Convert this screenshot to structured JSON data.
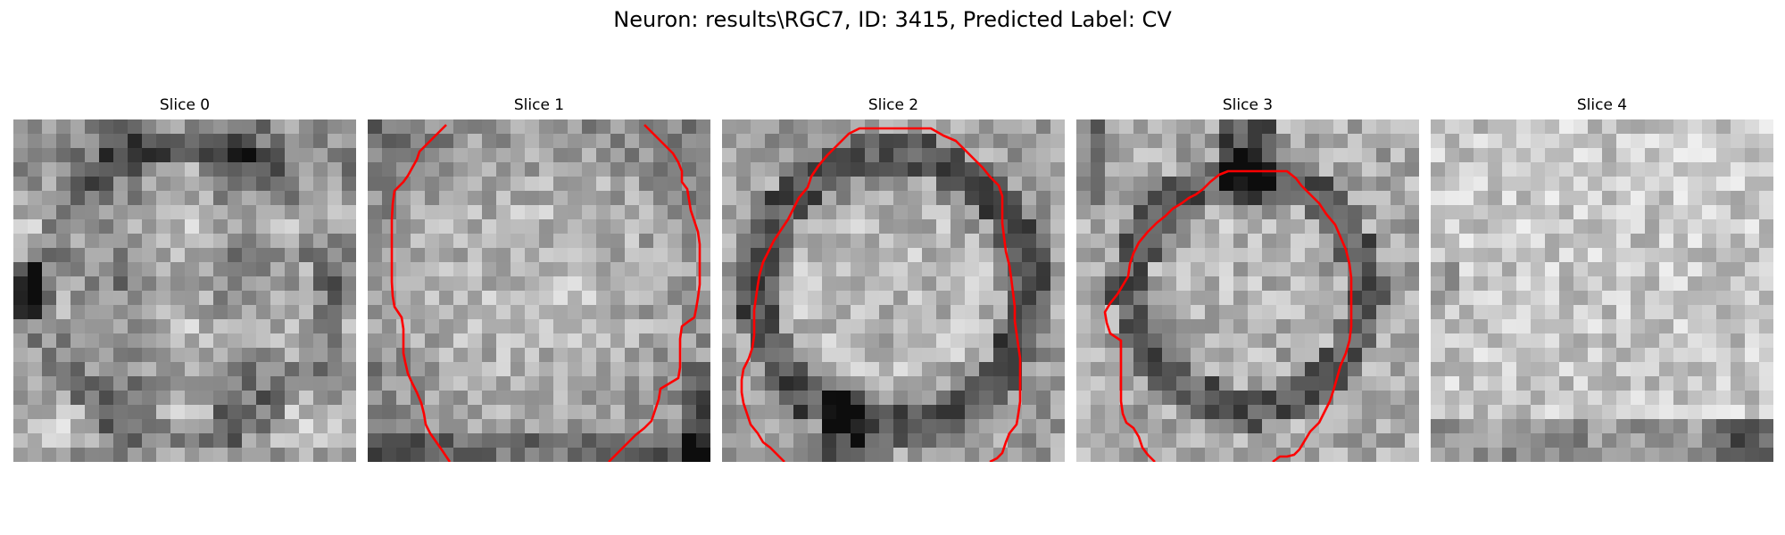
{
  "figure": {
    "title": "Neuron: results\\RGC7, ID: 3415, Predicted Label: CV"
  },
  "panels": [
    {
      "label": "Slice 0",
      "has_contour": false,
      "contour": []
    },
    {
      "label": "Slice 1",
      "has_contour": true,
      "contour": [
        [
          [
            88,
            6
          ],
          [
            82,
            12
          ],
          [
            76,
            18
          ],
          [
            70,
            24
          ],
          [
            64,
            30
          ],
          [
            58,
            36
          ],
          [
            55,
            45
          ],
          [
            50,
            54
          ],
          [
            45,
            63
          ],
          [
            40,
            70
          ],
          [
            30,
            80
          ],
          [
            28,
            95
          ],
          [
            27,
            112
          ],
          [
            27,
            130
          ],
          [
            27,
            148
          ],
          [
            27,
            165
          ],
          [
            27,
            182
          ],
          [
            28,
            198
          ],
          [
            30,
            210
          ],
          [
            38,
            222
          ],
          [
            40,
            235
          ],
          [
            40,
            248
          ],
          [
            40,
            262
          ],
          [
            42,
            272
          ],
          [
            45,
            285
          ],
          [
            50,
            296
          ],
          [
            55,
            306
          ],
          [
            60,
            318
          ],
          [
            63,
            330
          ],
          [
            65,
            342
          ],
          [
            70,
            352
          ],
          [
            77,
            362
          ],
          [
            84,
            372
          ],
          [
            88,
            378
          ],
          [
            92,
            384
          ]
        ],
        [
          [
            310,
            6
          ],
          [
            318,
            14
          ],
          [
            326,
            22
          ],
          [
            334,
            30
          ],
          [
            342,
            38
          ],
          [
            348,
            48
          ],
          [
            352,
            58
          ],
          [
            352,
            70
          ],
          [
            358,
            78
          ],
          [
            360,
            90
          ],
          [
            362,
            102
          ],
          [
            366,
            114
          ],
          [
            370,
            126
          ],
          [
            372,
            140
          ],
          [
            372,
            155
          ],
          [
            372,
            170
          ],
          [
            372,
            185
          ],
          [
            370,
            200
          ],
          [
            368,
            212
          ],
          [
            366,
            222
          ],
          [
            360,
            226
          ],
          [
            352,
            232
          ],
          [
            350,
            246
          ],
          [
            350,
            262
          ],
          [
            350,
            278
          ],
          [
            348,
            290
          ],
          [
            338,
            296
          ],
          [
            328,
            302
          ],
          [
            326,
            314
          ],
          [
            322,
            326
          ],
          [
            318,
            338
          ],
          [
            310,
            346
          ],
          [
            300,
            354
          ],
          [
            290,
            364
          ],
          [
            282,
            372
          ],
          [
            276,
            378
          ],
          [
            270,
            384
          ]
        ]
      ]
    },
    {
      "label": "Slice 2",
      "has_contour": true,
      "contour": [
        [
          [
            70,
            384
          ],
          [
            62,
            376
          ],
          [
            54,
            368
          ],
          [
            46,
            362
          ],
          [
            40,
            352
          ],
          [
            32,
            342
          ],
          [
            28,
            330
          ],
          [
            24,
            318
          ],
          [
            22,
            306
          ],
          [
            22,
            292
          ],
          [
            24,
            280
          ],
          [
            30,
            268
          ],
          [
            34,
            256
          ],
          [
            36,
            242
          ],
          [
            36,
            228
          ],
          [
            36,
            214
          ],
          [
            38,
            200
          ],
          [
            40,
            186
          ],
          [
            42,
            174
          ],
          [
            46,
            160
          ],
          [
            52,
            148
          ],
          [
            58,
            136
          ],
          [
            66,
            124
          ],
          [
            74,
            112
          ],
          [
            80,
            100
          ],
          [
            86,
            88
          ],
          [
            96,
            76
          ],
          [
            100,
            64
          ],
          [
            108,
            52
          ],
          [
            118,
            40
          ],
          [
            130,
            28
          ],
          [
            142,
            16
          ],
          [
            154,
            10
          ],
          [
            170,
            10
          ],
          [
            186,
            10
          ],
          [
            202,
            10
          ],
          [
            218,
            10
          ],
          [
            234,
            10
          ],
          [
            248,
            18
          ],
          [
            262,
            24
          ],
          [
            272,
            34
          ],
          [
            282,
            44
          ],
          [
            292,
            54
          ],
          [
            300,
            64
          ],
          [
            310,
            74
          ],
          [
            314,
            86
          ],
          [
            314,
            100
          ],
          [
            314,
            116
          ],
          [
            316,
            132
          ],
          [
            318,
            148
          ],
          [
            322,
            164
          ],
          [
            324,
            178
          ],
          [
            326,
            194
          ],
          [
            328,
            210
          ],
          [
            328,
            226
          ],
          [
            330,
            240
          ],
          [
            332,
            254
          ],
          [
            334,
            268
          ],
          [
            334,
            284
          ],
          [
            334,
            300
          ],
          [
            334,
            316
          ],
          [
            332,
            330
          ],
          [
            330,
            342
          ],
          [
            322,
            352
          ],
          [
            318,
            362
          ],
          [
            314,
            374
          ],
          [
            308,
            380
          ],
          [
            300,
            384
          ]
        ]
      ]
    },
    {
      "label": "Slice 3",
      "has_contour": true,
      "contour": [
        [
          [
            88,
            384
          ],
          [
            80,
            376
          ],
          [
            74,
            368
          ],
          [
            70,
            356
          ],
          [
            64,
            346
          ],
          [
            56,
            340
          ],
          [
            52,
            330
          ],
          [
            50,
            316
          ],
          [
            50,
            300
          ],
          [
            50,
            286
          ],
          [
            50,
            274
          ],
          [
            50,
            260
          ],
          [
            50,
            248
          ],
          [
            38,
            240
          ],
          [
            34,
            228
          ],
          [
            32,
            216
          ],
          [
            38,
            206
          ],
          [
            46,
            196
          ],
          [
            52,
            186
          ],
          [
            58,
            176
          ],
          [
            60,
            162
          ],
          [
            64,
            150
          ],
          [
            70,
            138
          ],
          [
            80,
            126
          ],
          [
            90,
            116
          ],
          [
            100,
            108
          ],
          [
            108,
            100
          ],
          [
            118,
            94
          ],
          [
            126,
            88
          ],
          [
            134,
            84
          ],
          [
            142,
            78
          ],
          [
            150,
            70
          ],
          [
            160,
            62
          ],
          [
            170,
            58
          ],
          [
            182,
            58
          ],
          [
            196,
            58
          ],
          [
            210,
            58
          ],
          [
            224,
            58
          ],
          [
            236,
            58
          ],
          [
            246,
            66
          ],
          [
            252,
            74
          ],
          [
            262,
            84
          ],
          [
            272,
            94
          ],
          [
            280,
            106
          ],
          [
            290,
            118
          ],
          [
            296,
            132
          ],
          [
            302,
            146
          ],
          [
            306,
            162
          ],
          [
            308,
            178
          ],
          [
            308,
            196
          ],
          [
            308,
            214
          ],
          [
            308,
            232
          ],
          [
            306,
            248
          ],
          [
            302,
            262
          ],
          [
            296,
            276
          ],
          [
            292,
            290
          ],
          [
            288,
            304
          ],
          [
            284,
            316
          ],
          [
            278,
            328
          ],
          [
            272,
            340
          ],
          [
            262,
            350
          ],
          [
            256,
            360
          ],
          [
            250,
            370
          ],
          [
            244,
            376
          ],
          [
            236,
            378
          ],
          [
            228,
            378
          ],
          [
            220,
            384
          ]
        ]
      ]
    },
    {
      "label": "Slice 4",
      "has_contour": false,
      "contour": []
    }
  ]
}
